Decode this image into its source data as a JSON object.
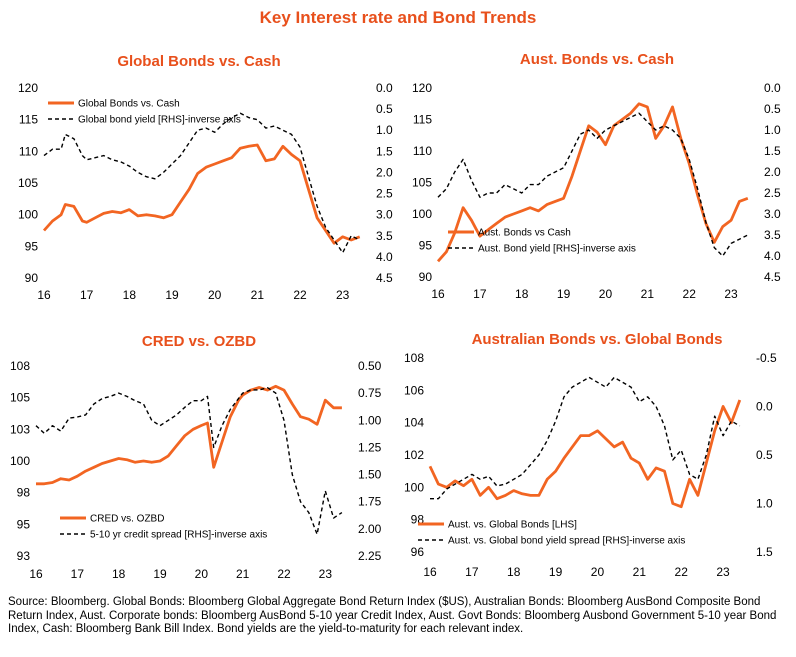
{
  "title": "Key Interest rate and Bond Trends",
  "source": "Source: Bloomberg. Global Bonds: Bloomberg Global Aggregate Bond Return Index ($US), Australian Bonds: Bloomberg AusBond Composite Bond Return Index, Aust. Corporate bonds: Bloomberg AusBond 5-10 year Credit Index, Aust. Govt Bonds: Bloomberg Ausbond Government 5-10 year Bond Index, Cash: Bloomberg Bank Bill Index. Bond yields are the yield-to-maturity for each relevant index.",
  "colors": {
    "orange": "#f26522",
    "dashed": "#000000",
    "title": "#e8501c"
  },
  "chart_data": [
    {
      "type": "line",
      "title": "Global Bonds vs. Cash",
      "x_ticks": [
        "16",
        "17",
        "18",
        "19",
        "20",
        "21",
        "22",
        "23"
      ],
      "xlim": [
        2016,
        2023.5
      ],
      "left_axis": {
        "ylim": [
          90,
          120
        ],
        "ticks": [
          "90",
          "95",
          "100",
          "105",
          "110",
          "115",
          "120"
        ]
      },
      "right_axis": {
        "ylim": [
          0,
          4.5
        ],
        "inverse": true,
        "ticks": [
          "0.0",
          "0.5",
          "1.0",
          "1.5",
          "2.0",
          "2.5",
          "3.0",
          "3.5",
          "4.0",
          "4.5"
        ]
      },
      "legend_position": "top-left",
      "series": [
        {
          "name": "Global Bonds vs. Cash",
          "axis": "left",
          "style": "solid",
          "color": "#f26522",
          "x": [
            2016,
            2016.2,
            2016.4,
            2016.5,
            2016.7,
            2016.9,
            2017.0,
            2017.2,
            2017.4,
            2017.6,
            2017.8,
            2018.0,
            2018.2,
            2018.4,
            2018.6,
            2018.8,
            2019.0,
            2019.2,
            2019.4,
            2019.6,
            2019.8,
            2020.0,
            2020.2,
            2020.4,
            2020.6,
            2020.8,
            2021.0,
            2021.2,
            2021.4,
            2021.6,
            2021.8,
            2022.0,
            2022.2,
            2022.4,
            2022.6,
            2022.8,
            2023.0,
            2023.2,
            2023.4
          ],
          "y": [
            97.5,
            99,
            100,
            101.6,
            101.3,
            99,
            98.8,
            99.5,
            100.2,
            100.5,
            100.3,
            100.8,
            99.8,
            100,
            99.8,
            99.5,
            100,
            102,
            104,
            106.5,
            107.5,
            108,
            108.5,
            109,
            110.5,
            110.8,
            111,
            108.5,
            108.8,
            110.8,
            109.5,
            108.5,
            104,
            99.5,
            97.5,
            95.5,
            96.5,
            96,
            96.5
          ]
        },
        {
          "name": "Global bond yield [RHS]-inverse axis",
          "axis": "right",
          "style": "dashed",
          "color": "#000000",
          "x": [
            2016,
            2016.2,
            2016.4,
            2016.5,
            2016.7,
            2016.9,
            2017.0,
            2017.2,
            2017.4,
            2017.6,
            2017.8,
            2018.0,
            2018.2,
            2018.4,
            2018.6,
            2018.8,
            2019.0,
            2019.2,
            2019.4,
            2019.6,
            2019.8,
            2020.0,
            2020.2,
            2020.4,
            2020.6,
            2020.8,
            2021.0,
            2021.2,
            2021.4,
            2021.6,
            2021.8,
            2022.0,
            2022.2,
            2022.4,
            2022.6,
            2022.8,
            2023.0,
            2023.2,
            2023.4
          ],
          "y": [
            1.6,
            1.45,
            1.45,
            1.1,
            1.2,
            1.6,
            1.7,
            1.65,
            1.6,
            1.7,
            1.75,
            1.85,
            2.0,
            2.1,
            2.15,
            2.0,
            1.8,
            1.6,
            1.3,
            1.0,
            0.95,
            1.05,
            0.85,
            0.7,
            0.6,
            0.7,
            0.75,
            0.95,
            0.9,
            1.0,
            1.1,
            1.4,
            2.1,
            2.8,
            3.3,
            3.6,
            3.9,
            3.5,
            3.6
          ]
        }
      ]
    },
    {
      "type": "line",
      "title": "Aust. Bonds vs. Cash",
      "x_ticks": [
        "16",
        "17",
        "18",
        "19",
        "20",
        "21",
        "22",
        "23"
      ],
      "xlim": [
        2016,
        2023.5
      ],
      "left_axis": {
        "ylim": [
          90,
          120
        ],
        "ticks": [
          "90",
          "95",
          "100",
          "105",
          "110",
          "115",
          "120"
        ]
      },
      "right_axis": {
        "ylim": [
          0,
          4.5
        ],
        "inverse": true,
        "ticks": [
          "0.0",
          "0.5",
          "1.0",
          "1.5",
          "2.0",
          "2.5",
          "3.0",
          "3.5",
          "4.0",
          "4.5"
        ]
      },
      "legend_position": "bottom-left",
      "series": [
        {
          "name": "Aust. Bonds vs Cash",
          "axis": "left",
          "style": "solid",
          "color": "#f26522",
          "x": [
            2016,
            2016.2,
            2016.4,
            2016.6,
            2016.8,
            2017.0,
            2017.2,
            2017.4,
            2017.6,
            2017.8,
            2018.0,
            2018.2,
            2018.4,
            2018.6,
            2018.8,
            2019.0,
            2019.2,
            2019.4,
            2019.6,
            2019.8,
            2020.0,
            2020.2,
            2020.4,
            2020.6,
            2020.8,
            2021.0,
            2021.2,
            2021.4,
            2021.6,
            2021.8,
            2022.0,
            2022.2,
            2022.4,
            2022.6,
            2022.8,
            2023.0,
            2023.2,
            2023.4
          ],
          "y": [
            92.5,
            94,
            97,
            101,
            99,
            96.5,
            97.5,
            98.5,
            99.5,
            100,
            100.5,
            101,
            100.5,
            101.5,
            102,
            102.5,
            106,
            110,
            114,
            113,
            111,
            114,
            115,
            116,
            117.5,
            117,
            112,
            114,
            117,
            112,
            108,
            103,
            98.5,
            95.5,
            98,
            99,
            102,
            102.5
          ]
        },
        {
          "name": "Aust. Bond yield [RHS]-inverse axis",
          "axis": "right",
          "style": "dashed",
          "color": "#000000",
          "x": [
            2016,
            2016.2,
            2016.4,
            2016.6,
            2016.8,
            2017.0,
            2017.2,
            2017.4,
            2017.6,
            2017.8,
            2018.0,
            2018.2,
            2018.4,
            2018.6,
            2018.8,
            2019.0,
            2019.2,
            2019.4,
            2019.6,
            2019.8,
            2020.0,
            2020.2,
            2020.4,
            2020.6,
            2020.8,
            2021.0,
            2021.2,
            2021.4,
            2021.6,
            2021.8,
            2022.0,
            2022.2,
            2022.4,
            2022.6,
            2022.8,
            2023.0,
            2023.2,
            2023.4
          ],
          "y": [
            2.6,
            2.4,
            2.0,
            1.7,
            2.2,
            2.6,
            2.5,
            2.5,
            2.3,
            2.4,
            2.5,
            2.3,
            2.3,
            2.1,
            2.0,
            1.9,
            1.5,
            1.1,
            1.0,
            1.2,
            1.0,
            0.9,
            0.8,
            0.7,
            0.6,
            0.8,
            1.0,
            0.9,
            1.0,
            1.2,
            1.7,
            2.4,
            3.2,
            3.8,
            4.0,
            3.7,
            3.6,
            3.5
          ]
        }
      ]
    },
    {
      "type": "line",
      "title": "CRED vs. OZBD",
      "x_ticks": [
        "16",
        "17",
        "18",
        "19",
        "20",
        "21",
        "22",
        "23"
      ],
      "xlim": [
        2016,
        2023.5
      ],
      "left_axis": {
        "ylim": [
          92.5,
          107.5
        ],
        "ticks": [
          "93",
          "95",
          "98",
          "100",
          "103",
          "105",
          "108"
        ]
      },
      "right_axis": {
        "ylim": [
          0.5,
          2.25
        ],
        "inverse": true,
        "ticks": [
          "0.50",
          "0.75",
          "1.00",
          "1.25",
          "1.50",
          "1.75",
          "2.00",
          "2.25"
        ]
      },
      "legend_position": "bottom-left",
      "series": [
        {
          "name": "CRED vs. OZBD",
          "axis": "left",
          "style": "solid",
          "color": "#f26522",
          "x": [
            2016,
            2016.2,
            2016.4,
            2016.6,
            2016.8,
            2017.0,
            2017.2,
            2017.4,
            2017.6,
            2017.8,
            2018.0,
            2018.2,
            2018.4,
            2018.6,
            2018.8,
            2019.0,
            2019.2,
            2019.4,
            2019.6,
            2019.8,
            2020.0,
            2020.15,
            2020.3,
            2020.5,
            2020.7,
            2020.9,
            2021.0,
            2021.2,
            2021.4,
            2021.6,
            2021.8,
            2022.0,
            2022.2,
            2022.4,
            2022.6,
            2022.8,
            2023.0,
            2023.2,
            2023.4
          ],
          "y": [
            98.2,
            98.2,
            98.3,
            98.6,
            98.5,
            98.8,
            99.2,
            99.5,
            99.8,
            100.0,
            100.2,
            100.1,
            99.9,
            100.0,
            99.9,
            100.0,
            100.4,
            101.2,
            102.0,
            102.5,
            102.8,
            103.0,
            99.5,
            101.5,
            103.5,
            104.8,
            105.2,
            105.6,
            105.8,
            105.6,
            105.9,
            105.6,
            104.5,
            103.5,
            103.3,
            102.9,
            104.8,
            104.2,
            104.2
          ]
        },
        {
          "name": "5-10 yr credit spread [RHS]-inverse axis",
          "axis": "right",
          "style": "dashed",
          "color": "#000000",
          "x": [
            2016,
            2016.2,
            2016.4,
            2016.6,
            2016.8,
            2017.0,
            2017.2,
            2017.4,
            2017.6,
            2017.8,
            2018.0,
            2018.2,
            2018.4,
            2018.6,
            2018.8,
            2019.0,
            2019.2,
            2019.4,
            2019.6,
            2019.8,
            2020.0,
            2020.15,
            2020.3,
            2020.5,
            2020.7,
            2020.9,
            2021.0,
            2021.2,
            2021.4,
            2021.6,
            2021.8,
            2022.0,
            2022.2,
            2022.4,
            2022.6,
            2022.8,
            2023.0,
            2023.2,
            2023.4
          ],
          "y": [
            1.05,
            1.12,
            1.05,
            1.1,
            0.98,
            0.97,
            0.95,
            0.85,
            0.8,
            0.78,
            0.75,
            0.78,
            0.82,
            0.85,
            1.0,
            1.05,
            1.0,
            0.95,
            0.88,
            0.82,
            0.82,
            0.78,
            1.25,
            1.05,
            0.9,
            0.8,
            0.75,
            0.72,
            0.72,
            0.7,
            0.75,
            1.0,
            1.5,
            1.75,
            1.85,
            2.05,
            1.65,
            1.9,
            1.85
          ]
        }
      ]
    },
    {
      "type": "line",
      "title": "Australian Bonds vs. Global Bonds",
      "x_ticks": [
        "16",
        "17",
        "18",
        "19",
        "20",
        "21",
        "22",
        "23"
      ],
      "xlim": [
        2016,
        2023.5
      ],
      "left_axis": {
        "ylim": [
          96,
          108
        ],
        "ticks": [
          "96",
          "98",
          "100",
          "102",
          "104",
          "106",
          "108"
        ]
      },
      "right_axis": {
        "ylim": [
          -0.5,
          1.5
        ],
        "inverse": true,
        "ticks": [
          "-0.5",
          "0.0",
          "0.5",
          "1.0",
          "1.5"
        ]
      },
      "legend_position": "bottom-left",
      "series": [
        {
          "name": "Aust. vs. Global Bonds [LHS]",
          "axis": "left",
          "style": "solid",
          "color": "#f26522",
          "x": [
            2016,
            2016.2,
            2016.4,
            2016.6,
            2016.8,
            2017.0,
            2017.2,
            2017.4,
            2017.6,
            2017.8,
            2018.0,
            2018.2,
            2018.4,
            2018.6,
            2018.8,
            2019.0,
            2019.2,
            2019.4,
            2019.6,
            2019.8,
            2020.0,
            2020.2,
            2020.4,
            2020.6,
            2020.8,
            2021.0,
            2021.2,
            2021.4,
            2021.6,
            2021.8,
            2022.0,
            2022.2,
            2022.4,
            2022.6,
            2022.8,
            2023.0,
            2023.2,
            2023.4
          ],
          "y": [
            101.3,
            100.2,
            100.0,
            100.4,
            100.1,
            100.5,
            99.5,
            100.0,
            99.3,
            99.5,
            99.8,
            99.6,
            99.5,
            99.5,
            100.5,
            101.0,
            101.8,
            102.5,
            103.2,
            103.2,
            103.5,
            103.0,
            102.5,
            102.8,
            101.8,
            101.5,
            100.5,
            101.2,
            101.0,
            99.0,
            98.8,
            100.5,
            99.5,
            101.5,
            103.5,
            105.0,
            104.0,
            105.4
          ]
        },
        {
          "name": "Aust. vs. Global bond yield spread [RHS]-inverse axis",
          "axis": "right",
          "style": "dashed",
          "color": "#000000",
          "x": [
            2016,
            2016.2,
            2016.4,
            2016.6,
            2016.8,
            2017.0,
            2017.2,
            2017.4,
            2017.6,
            2017.8,
            2018.0,
            2018.2,
            2018.4,
            2018.6,
            2018.8,
            2019.0,
            2019.2,
            2019.4,
            2019.6,
            2019.8,
            2020.0,
            2020.2,
            2020.4,
            2020.6,
            2020.8,
            2021.0,
            2021.2,
            2021.4,
            2021.6,
            2021.8,
            2022.0,
            2022.2,
            2022.4,
            2022.6,
            2022.8,
            2023.0,
            2023.2,
            2023.4
          ],
          "y": [
            0.95,
            0.95,
            0.85,
            0.8,
            0.75,
            0.7,
            0.75,
            0.72,
            0.82,
            0.8,
            0.75,
            0.7,
            0.6,
            0.5,
            0.35,
            0.15,
            -0.1,
            -0.2,
            -0.25,
            -0.3,
            -0.25,
            -0.2,
            -0.3,
            -0.25,
            -0.2,
            -0.05,
            -0.1,
            0.0,
            0.2,
            0.55,
            0.45,
            0.7,
            0.75,
            0.5,
            0.1,
            0.3,
            0.15,
            0.2
          ]
        }
      ]
    }
  ]
}
